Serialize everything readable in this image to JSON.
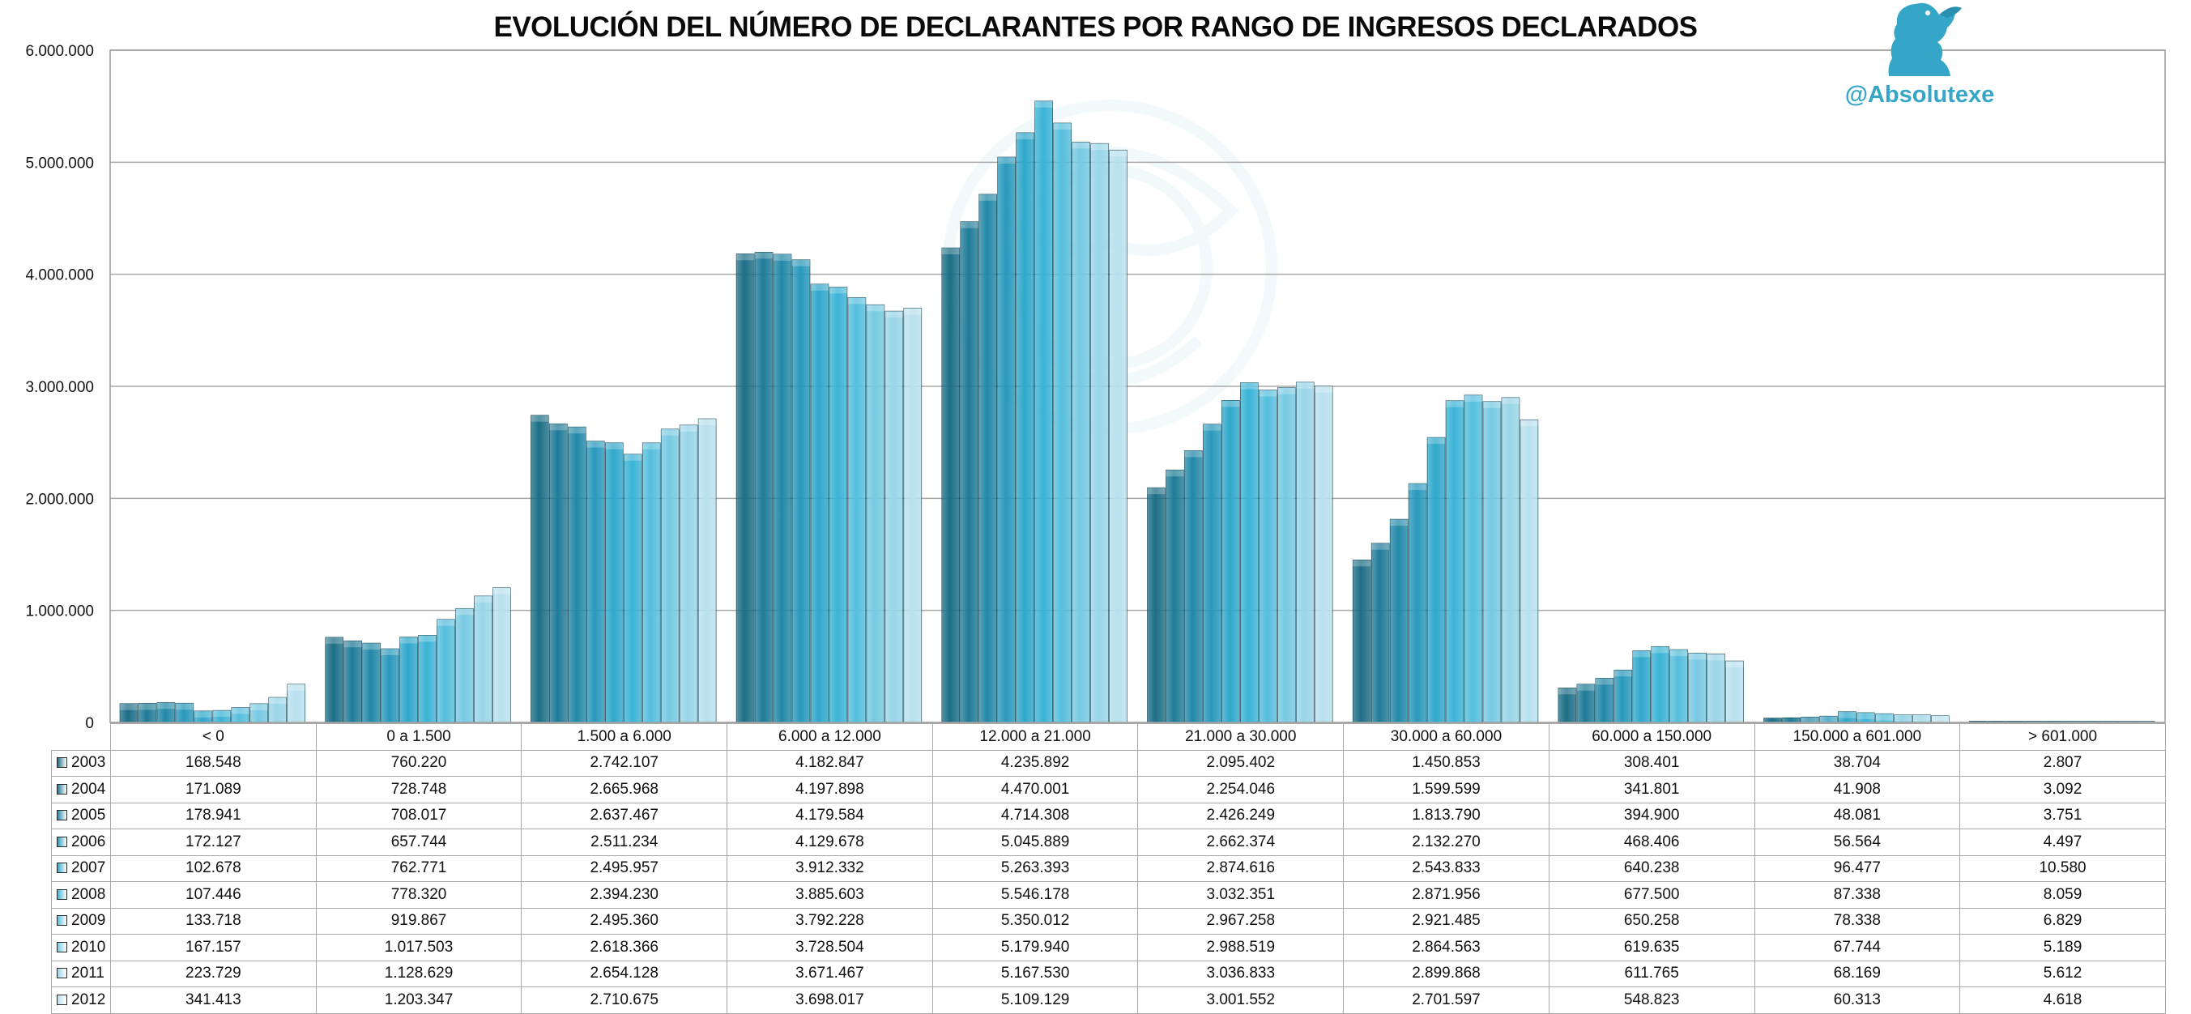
{
  "chart_data": {
    "type": "bar",
    "title": "EVOLUCIÓN DEL NÚMERO DE DECLARANTES POR RANGO DE INGRESOS DECLARADOS",
    "xlabel": "",
    "ylabel": "",
    "ylim": [
      0,
      6000000
    ],
    "yticks": [
      0,
      1000000,
      2000000,
      3000000,
      4000000,
      5000000,
      6000000
    ],
    "ytick_labels": [
      "0",
      "1.000.000",
      "2.000.000",
      "3.000.000",
      "4.000.000",
      "5.000.000",
      "6.000.000"
    ],
    "grid": true,
    "legend_placement": "data-table",
    "categories": [
      "< 0",
      "0 a 1.500",
      "1.500 a 6.000",
      "6.000 a 12.000",
      "12.000 a 21.000",
      "21.000 a 30.000",
      "30.000 a 60.000",
      "60.000 a 150.000",
      "150.000 a 601.000",
      "> 601.000"
    ],
    "series": [
      {
        "name": "2003",
        "color": "#1c6e86",
        "values": [
          168548,
          760220,
          2742107,
          4182847,
          4235892,
          2095402,
          1450853,
          308401,
          38704,
          2807
        ],
        "labels": [
          "168.548",
          "760.220",
          "2.742.107",
          "4.182.847",
          "4.235.892",
          "2.095.402",
          "1.450.853",
          "308.401",
          "38.704",
          "2.807"
        ]
      },
      {
        "name": "2004",
        "color": "#1f7b97",
        "values": [
          171089,
          728748,
          2665968,
          4197898,
          4470001,
          2254046,
          1599599,
          341801,
          41908,
          3092
        ],
        "labels": [
          "171.089",
          "728.748",
          "2.665.968",
          "4.197.898",
          "4.470.001",
          "2.254.046",
          "1.599.599",
          "341.801",
          "41.908",
          "3.092"
        ]
      },
      {
        "name": "2005",
        "color": "#2288a8",
        "values": [
          178941,
          708017,
          2637467,
          4179584,
          4714308,
          2426249,
          1813790,
          394900,
          48081,
          3751
        ],
        "labels": [
          "178.941",
          "708.017",
          "2.637.467",
          "4.179.584",
          "4.714.308",
          "2.426.249",
          "1.813.790",
          "394.900",
          "48.081",
          "3.751"
        ]
      },
      {
        "name": "2006",
        "color": "#2898bb",
        "values": [
          172127,
          657744,
          2511234,
          4129678,
          5045889,
          2662374,
          2132270,
          468406,
          56564,
          4497
        ],
        "labels": [
          "172.127",
          "657.744",
          "2.511.234",
          "4.129.678",
          "5.045.889",
          "2.662.374",
          "2.132.270",
          "468.406",
          "56.564",
          "4.497"
        ]
      },
      {
        "name": "2007",
        "color": "#2fa7cb",
        "values": [
          102678,
          762771,
          2495957,
          3912332,
          5263393,
          2874616,
          2543833,
          640238,
          96477,
          10580
        ],
        "labels": [
          "102.678",
          "762.771",
          "2.495.957",
          "3.912.332",
          "5.263.393",
          "2.874.616",
          "2.543.833",
          "640.238",
          "96.477",
          "10.580"
        ]
      },
      {
        "name": "2008",
        "color": "#3ab3d6",
        "values": [
          107446,
          778320,
          2394230,
          3885603,
          5546178,
          3032351,
          2871956,
          677500,
          87338,
          8059
        ],
        "labels": [
          "107.446",
          "778.320",
          "2.394.230",
          "3.885.603",
          "5.546.178",
          "3.032.351",
          "2.871.956",
          "677.500",
          "87.338",
          "8.059"
        ]
      },
      {
        "name": "2009",
        "color": "#55bedd",
        "values": [
          133718,
          919867,
          2495360,
          3792228,
          5350012,
          2967258,
          2921485,
          650258,
          78338,
          6829
        ],
        "labels": [
          "133.718",
          "919.867",
          "2.495.360",
          "3.792.228",
          "5.350.012",
          "2.967.258",
          "2.921.485",
          "650.258",
          "78.338",
          "6.829"
        ]
      },
      {
        "name": "2010",
        "color": "#76c9e2",
        "values": [
          167157,
          1017503,
          2618366,
          3728504,
          5179940,
          2988519,
          2864563,
          619635,
          67744,
          5189
        ],
        "labels": [
          "167.157",
          "1.017.503",
          "2.618.366",
          "3.728.504",
          "5.179.940",
          "2.988.519",
          "2.864.563",
          "619.635",
          "67.744",
          "5.189"
        ]
      },
      {
        "name": "2011",
        "color": "#98d5e8",
        "values": [
          223729,
          1128629,
          2654128,
          3671467,
          5167530,
          3036833,
          2899868,
          611765,
          68169,
          5612
        ],
        "labels": [
          "223.729",
          "1.128.629",
          "2.654.128",
          "3.671.467",
          "5.167.530",
          "3.036.833",
          "2.899.868",
          "611.765",
          "68.169",
          "5.612"
        ]
      },
      {
        "name": "2012",
        "color": "#b8e0ee",
        "values": [
          341413,
          1203347,
          2710675,
          3698017,
          5109129,
          3001552,
          2701597,
          548823,
          60313,
          4618
        ],
        "labels": [
          "341.413",
          "1.203.347",
          "2.710.675",
          "3.698.017",
          "5.109.129",
          "3.001.552",
          "2.701.597",
          "548.823",
          "60.313",
          "4.618"
        ]
      }
    ]
  },
  "branding": {
    "handle": "@Absolutexe",
    "logo_icon": "griffin-icon",
    "watermark_icon": "eagle-crest-icon",
    "accent_color": "#35a6c8"
  }
}
